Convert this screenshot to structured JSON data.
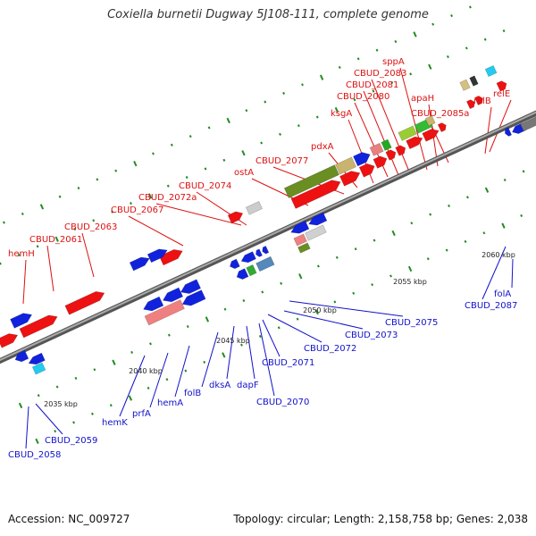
{
  "title": "Coxiella burnetii Dugway 5J108-111, complete genome",
  "footer": {
    "accession": "Accession: NC_009727",
    "summary": "Topology: circular; Length: 2,158,758 bp; Genes: 2,038"
  },
  "colors": {
    "label_top": "#dd1111",
    "label_bottom": "#1111cc",
    "backbone": "#888888",
    "tick": "#228b22",
    "gene_red": "#ee1111",
    "gene_blue": "#1122dd"
  },
  "scale": {
    "labels": [
      {
        "text": "2035 kbp"
      },
      {
        "text": "2040 kbp"
      },
      {
        "text": "2045 kbp"
      },
      {
        "text": "2050 kbp"
      },
      {
        "text": "2055 kbp"
      },
      {
        "text": "2060 kbp"
      }
    ]
  },
  "top_genes": [
    "hemH",
    "CBUD_2061",
    "CBUD_2063",
    "CBUD_2067",
    "CBUD_2072a",
    "CBUD_2074",
    "ostA",
    "CBUD_2077",
    "pdxA",
    "ksgA",
    "CBUD_2080",
    "CBUD_2081",
    "CBUD_2083",
    "sppA",
    "apaH",
    "CBUD_2085a",
    "relB",
    "relE"
  ],
  "bottom_genes": [
    "CBUD_2058",
    "CBUD_2059",
    "hemK",
    "prfA",
    "hemA",
    "folB",
    "dksA",
    "dapF",
    "CBUD_2070",
    "CBUD_2071",
    "CBUD_2072",
    "CBUD_2073",
    "CBUD_2075",
    "CBUD_2087",
    "folA"
  ]
}
